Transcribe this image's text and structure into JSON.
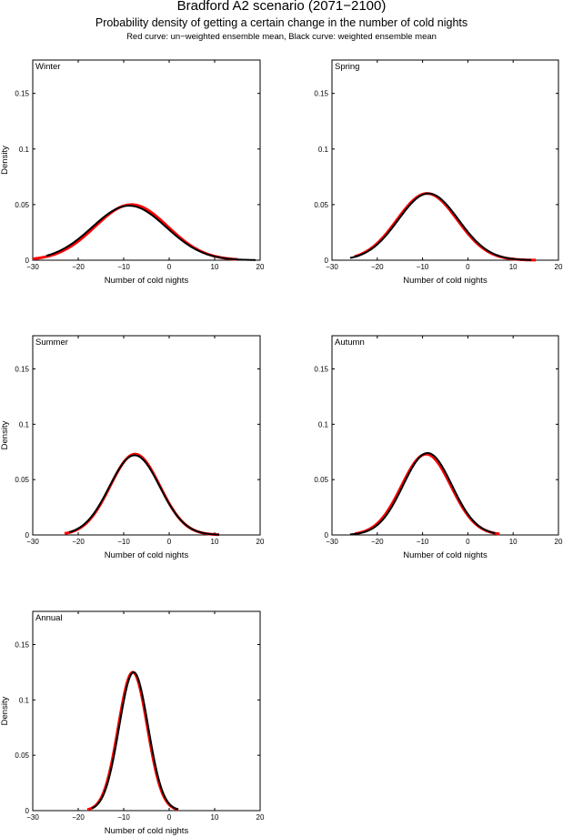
{
  "title": "Bradford A2 scenario (2071−2100)",
  "subtitle": "Probability density of getting a certain change in the number of cold nights",
  "note": "Red curve: un−weighted ensemble mean, Black curve: weighted ensemble mean",
  "colors": {
    "unweighted": "#ff0000",
    "weighted": "#000000"
  },
  "chart_data": [
    {
      "type": "line",
      "panel": "Winter",
      "xlabel": "Number of cold nights",
      "ylabel": "Density",
      "xlim": [
        -30,
        20
      ],
      "ylim": [
        0,
        0.18
      ],
      "xticks": [
        "−30",
        "−20",
        "−10",
        "0",
        "10",
        "20"
      ],
      "yticks": [
        "0",
        "0.05",
        "0.1",
        "0.15"
      ],
      "series": [
        {
          "name": "un-weighted ensemble mean",
          "color": "red",
          "mean": -8.3,
          "peak": 0.05,
          "range": [
            -30,
            15
          ]
        },
        {
          "name": "weighted ensemble mean",
          "color": "black",
          "mean": -8.8,
          "peak": 0.049,
          "range": [
            -27,
            19
          ]
        }
      ]
    },
    {
      "type": "line",
      "panel": "Spring",
      "xlabel": "Number of cold nights",
      "ylabel": "",
      "xlim": [
        -30,
        20
      ],
      "ylim": [
        0,
        0.18
      ],
      "xticks": [
        "−30",
        "−20",
        "−10",
        "0",
        "10",
        "20"
      ],
      "yticks": [
        "0",
        "0.05",
        "0.1",
        "0.15"
      ],
      "series": [
        {
          "name": "un-weighted ensemble mean",
          "color": "red",
          "mean": -9.0,
          "peak": 0.06,
          "range": [
            -25,
            15
          ]
        },
        {
          "name": "weighted ensemble mean",
          "color": "black",
          "mean": -8.7,
          "peak": 0.06,
          "range": [
            -26,
            14
          ]
        }
      ]
    },
    {
      "type": "line",
      "panel": "Summer",
      "xlabel": "Number of cold nights",
      "ylabel": "Density",
      "xlim": [
        -30,
        20
      ],
      "ylim": [
        0,
        0.18
      ],
      "xticks": [
        "−30",
        "−20",
        "−10",
        "0",
        "10",
        "20"
      ],
      "yticks": [
        "0",
        "0.05",
        "0.1",
        "0.15"
      ],
      "series": [
        {
          "name": "un-weighted ensemble mean",
          "color": "red",
          "mean": -7.5,
          "peak": 0.073,
          "range": [
            -23,
            11
          ]
        },
        {
          "name": "weighted ensemble mean",
          "color": "black",
          "mean": -7.6,
          "peak": 0.072,
          "range": [
            -22,
            11
          ]
        }
      ]
    },
    {
      "type": "line",
      "panel": "Autumn",
      "xlabel": "Number of cold nights",
      "ylabel": "",
      "xlim": [
        -30,
        20
      ],
      "ylim": [
        0,
        0.18
      ],
      "xticks": [
        "−30",
        "−20",
        "−10",
        "0",
        "10",
        "20"
      ],
      "yticks": [
        "0",
        "0.05",
        "0.1",
        "0.15"
      ],
      "series": [
        {
          "name": "un-weighted ensemble mean",
          "color": "red",
          "mean": -9.2,
          "peak": 0.073,
          "range": [
            -25,
            7
          ]
        },
        {
          "name": "weighted ensemble mean",
          "color": "black",
          "mean": -8.9,
          "peak": 0.074,
          "range": [
            -26,
            6
          ]
        }
      ]
    },
    {
      "type": "line",
      "panel": "Annual",
      "xlabel": "Number of cold nights",
      "ylabel": "Density",
      "xlim": [
        -30,
        20
      ],
      "ylim": [
        0,
        0.18
      ],
      "xticks": [
        "−30",
        "−20",
        "−10",
        "0",
        "10",
        "20"
      ],
      "yticks": [
        "0",
        "0.05",
        "0.1",
        "0.15"
      ],
      "series": [
        {
          "name": "un-weighted ensemble mean",
          "color": "red",
          "mean": -8.0,
          "peak": 0.125,
          "range": [
            -18,
            2
          ]
        },
        {
          "name": "weighted ensemble mean",
          "color": "black",
          "mean": -7.8,
          "peak": 0.125,
          "range": [
            -17,
            2
          ]
        }
      ]
    }
  ]
}
